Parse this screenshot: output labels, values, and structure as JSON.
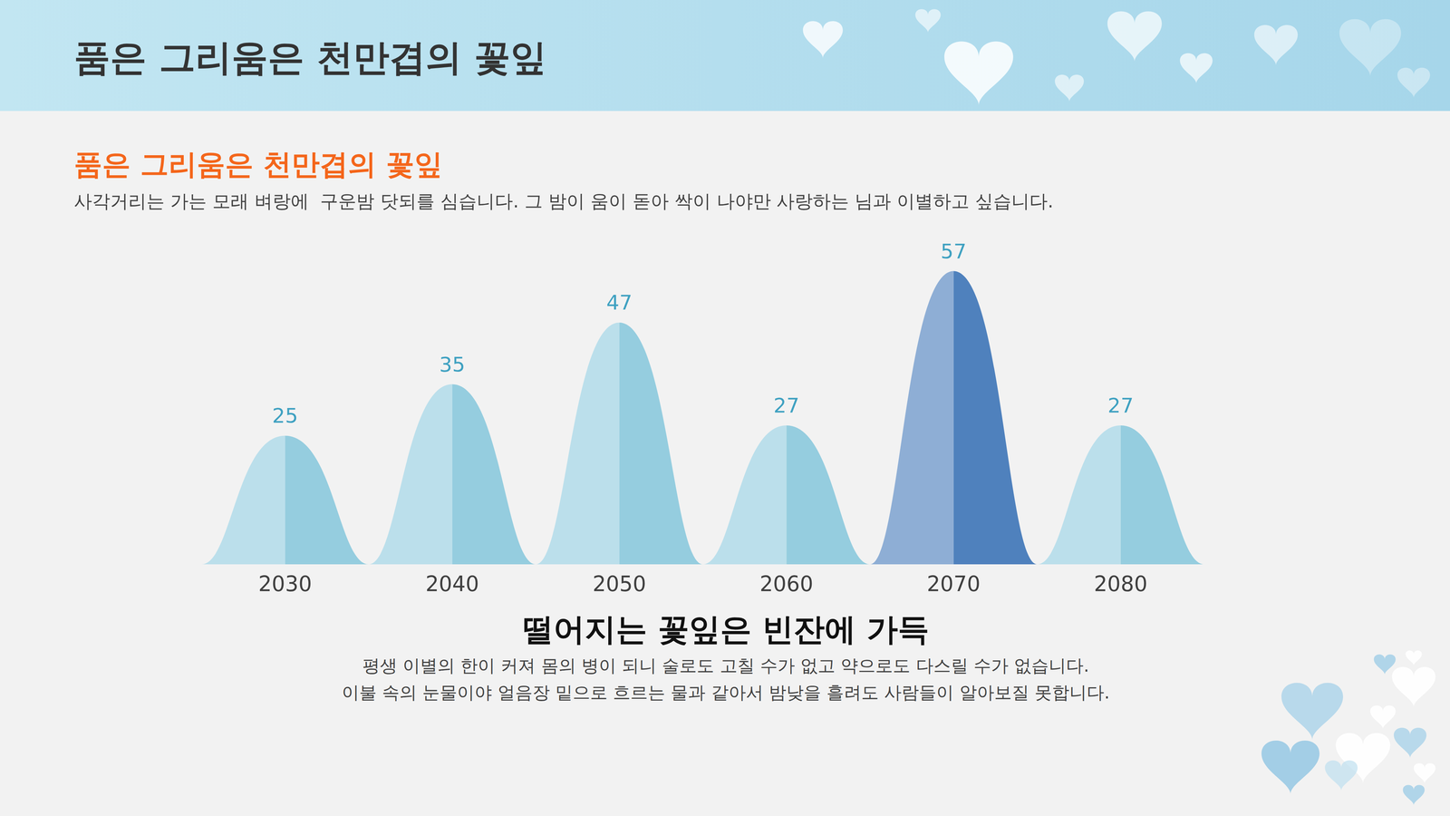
{
  "page": {
    "title": "품은 그리움은 천만겹의 꽃잎",
    "subtitle": "품은 그리움은 천만겹의 꽃잎",
    "description": "사각거리는 가는 모래 벼랑에  구운밤 닷되를 심습니다. 그 밤이 움이 돋아 싹이 나야만 사랑하는 님과 이별하고 싶습니다.",
    "footer_title": "떨어지는 꽃잎은 빈잔에 가득",
    "footer_lines": [
      "평생 이별의 한이 커져 몸의 병이 되니 술로도 고칠 수가 없고 약으로도 다스릴 수가 없습니다.",
      "이불 속의 눈물이야 얼음장 밑으로 흐르는 물과 같아서 밤낮을 흘려도 사람들이 알아보질 못합니다."
    ]
  },
  "chart_data": {
    "type": "bar",
    "categories": [
      "2030",
      "2040",
      "2050",
      "2060",
      "2070",
      "2080"
    ],
    "values": [
      25,
      35,
      47,
      27,
      57,
      27
    ],
    "colors": [
      "#95cddf",
      "#95cddf",
      "#95cddf",
      "#95cddf",
      "#4f81bd",
      "#95cddf"
    ],
    "ylim": [
      0,
      60
    ],
    "data_labels": true,
    "tick_labels": "x",
    "grid": false
  }
}
